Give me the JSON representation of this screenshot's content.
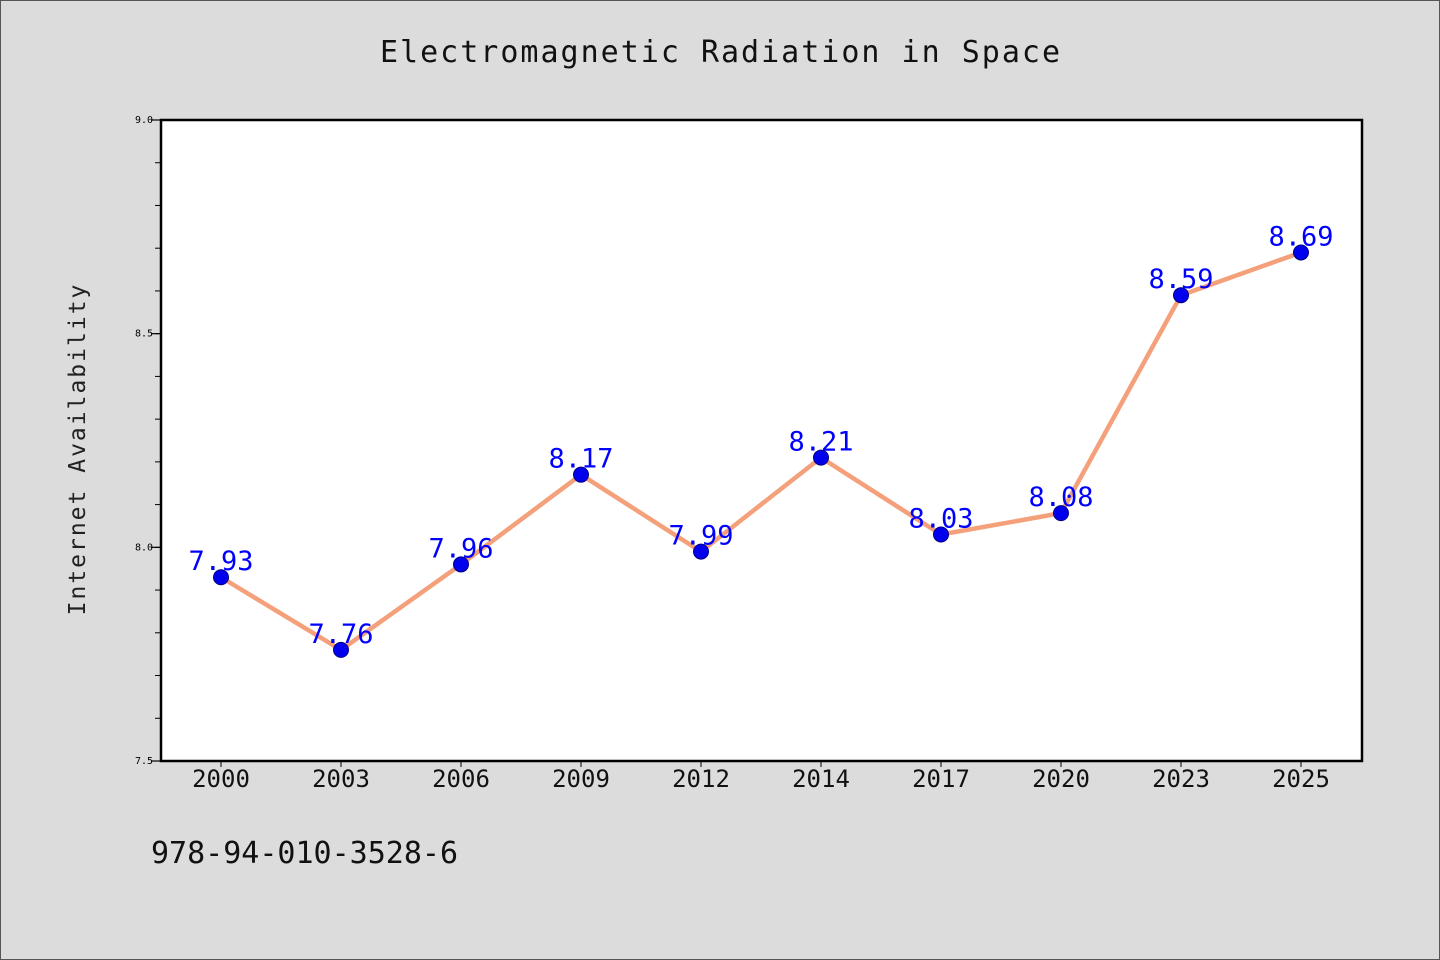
{
  "chart_data": {
    "type": "line",
    "title": "Electromagnetic Radiation in Space",
    "xlabel": "",
    "ylabel": "Internet Availability",
    "categories": [
      "2000",
      "2003",
      "2006",
      "2009",
      "2012",
      "2014",
      "2017",
      "2020",
      "2023",
      "2025"
    ],
    "series": [
      {
        "values": [
          7.93,
          7.76,
          7.96,
          8.17,
          7.99,
          8.21,
          8.03,
          8.08,
          8.59,
          8.69
        ]
      }
    ],
    "data_labels": [
      "7.93",
      "7.76",
      "7.96",
      "8.17",
      "7.99",
      "8.21",
      "8.03",
      "8.08",
      "8.59",
      "8.69"
    ],
    "ylim": [
      7.5,
      9.0
    ],
    "y_tick_labels": [
      "7.5",
      "8.0",
      "8.5",
      "9.0"
    ],
    "y_major_ticks": [
      7.5,
      8.0,
      8.5,
      9.0
    ],
    "y_minor_step": 0.1,
    "grid": false,
    "legend": "none",
    "colors": {
      "line": "#f4a07a",
      "marker": "#0000ee",
      "data_label": "#0000ff",
      "plot_background": "#ffffff",
      "figure_background": "#dcdcdc"
    }
  },
  "footnote": "978-94-010-3528-6"
}
